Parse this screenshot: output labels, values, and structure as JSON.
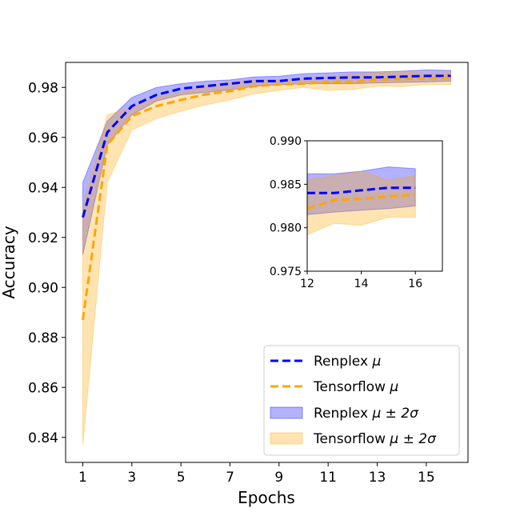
{
  "chart_data": {
    "type": "line",
    "title": "",
    "xlabel": "Epochs",
    "ylabel": "Accuracy",
    "xlim": [
      0.3,
      16.7
    ],
    "ylim": [
      0.83,
      0.99
    ],
    "xticks": [
      1,
      3,
      5,
      7,
      9,
      11,
      13,
      15
    ],
    "yticks": [
      0.84,
      0.86,
      0.88,
      0.9,
      0.92,
      0.94,
      0.96,
      0.98
    ],
    "x": [
      1,
      2,
      3,
      4,
      5,
      6,
      7,
      8,
      9,
      10,
      11,
      12,
      13,
      14,
      15,
      16
    ],
    "series": [
      {
        "name": "Renplex μ",
        "color": "#0000ff",
        "values": [
          0.928,
          0.962,
          0.9725,
          0.977,
          0.9795,
          0.9805,
          0.9815,
          0.9825,
          0.9825,
          0.9835,
          0.9838,
          0.984,
          0.984,
          0.9843,
          0.9846,
          0.9846
        ],
        "band_lower": [
          0.913,
          0.957,
          0.969,
          0.9745,
          0.977,
          0.978,
          0.979,
          0.9805,
          0.981,
          0.9815,
          0.9815,
          0.9815,
          0.9818,
          0.982,
          0.9822,
          0.9825
        ],
        "band_upper": [
          0.942,
          0.9665,
          0.976,
          0.98,
          0.9815,
          0.9825,
          0.983,
          0.9842,
          0.9845,
          0.9855,
          0.9858,
          0.9862,
          0.9862,
          0.9865,
          0.987,
          0.9868
        ]
      },
      {
        "name": "Tensorflow μ",
        "color": "#ffa500",
        "values": [
          0.887,
          0.957,
          0.9685,
          0.9725,
          0.975,
          0.9772,
          0.9785,
          0.9805,
          0.9812,
          0.9815,
          0.9822,
          0.9822,
          0.9832,
          0.9833,
          0.9836,
          0.9838
        ],
        "band_lower": [
          0.837,
          0.942,
          0.963,
          0.9675,
          0.9705,
          0.973,
          0.975,
          0.9775,
          0.9788,
          0.98,
          0.9788,
          0.9792,
          0.9805,
          0.9803,
          0.9812,
          0.9812
        ],
        "band_upper": [
          0.932,
          0.969,
          0.972,
          0.976,
          0.978,
          0.9805,
          0.982,
          0.983,
          0.983,
          0.983,
          0.984,
          0.9855,
          0.986,
          0.9865,
          0.9855,
          0.986
        ]
      }
    ],
    "legend": {
      "position": "lower-right",
      "entries": [
        {
          "label_plain": "Renplex",
          "label_math": "μ",
          "kind": "line",
          "color": "#0000ff"
        },
        {
          "label_plain": "Tensorflow",
          "label_math": "μ",
          "kind": "line",
          "color": "#ffa500"
        },
        {
          "label_plain": "Renplex",
          "label_math": "μ ± 2σ",
          "kind": "band",
          "color": "#0000ff"
        },
        {
          "label_plain": "Tensorflow",
          "label_math": "μ ± 2σ",
          "kind": "band",
          "color": "#ffa500"
        }
      ]
    },
    "inset": {
      "position": "upper-right",
      "xlim": [
        12,
        17
      ],
      "ylim": [
        0.975,
        0.99
      ],
      "xticks": [
        12,
        14,
        16
      ],
      "yticks": [
        0.975,
        0.98,
        0.985,
        0.99
      ],
      "ytick_labels": [
        "0.975",
        "0.980",
        "0.985",
        "0.990"
      ]
    },
    "grid": false
  }
}
